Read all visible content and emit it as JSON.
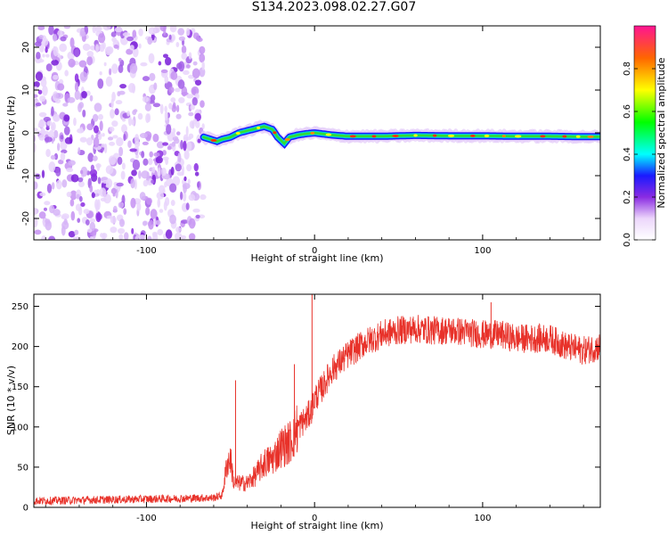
{
  "title": "S134.2023.098.02.27.G07",
  "chart_data": [
    {
      "type": "heatmap",
      "xlabel": "Height of straight line (km)",
      "ylabel": "Frequency (Hz)",
      "xlim": [
        -167,
        170
      ],
      "ylim": [
        -25,
        25
      ],
      "xticks": [
        -100,
        0,
        100
      ],
      "xtick_labels": [
        "-100",
        "0",
        "100"
      ],
      "yticks": [
        -20,
        -10,
        0,
        10,
        20
      ],
      "ytick_labels": [
        "-20",
        "-10",
        "0",
        "10",
        "20"
      ],
      "noise_region_x": [
        -167,
        -66
      ],
      "signal_ridge": {
        "x": [
          -66,
          -62,
          -58,
          -55,
          -50,
          -45,
          -40,
          -35,
          -30,
          -25,
          -22,
          -18,
          -15,
          -10,
          -5,
          0,
          10,
          20,
          40,
          60,
          80,
          100,
          120,
          140,
          160,
          170
        ],
        "frequency": [
          -1.0,
          -1.5,
          -2.0,
          -1.5,
          -1.0,
          0.0,
          0.5,
          1.0,
          1.5,
          0.8,
          -1.0,
          -2.5,
          -1.0,
          -0.5,
          -0.2,
          0.0,
          -0.5,
          -0.8,
          -0.8,
          -0.6,
          -0.7,
          -0.7,
          -0.8,
          -0.8,
          -0.9,
          -0.9
        ]
      },
      "colorbar": {
        "label": "Normalized spectral amplitude",
        "range": [
          0,
          1
        ],
        "ticks": [
          0.0,
          0.2,
          0.4,
          0.6,
          0.8
        ],
        "tick_labels": [
          "0.0",
          "0.2",
          "0.4",
          "0.6",
          "0.8"
        ]
      }
    },
    {
      "type": "line",
      "xlabel": "Height of straight line (km)",
      "ylabel": "SNR (10 * v/v)",
      "xlim": [
        -167,
        170
      ],
      "ylim": [
        0,
        265
      ],
      "xticks": [
        -100,
        0,
        100
      ],
      "xtick_labels": [
        "-100",
        "0",
        "100"
      ],
      "yticks": [
        0,
        50,
        100,
        150,
        200,
        250
      ],
      "ytick_labels": [
        "0",
        "50",
        "100",
        "150",
        "200",
        "250"
      ],
      "series": [
        {
          "color": "#e8322a",
          "x": [
            -167,
            -140,
            -110,
            -80,
            -60,
            -55,
            -52,
            -50,
            -48,
            -45,
            -40,
            -35,
            -30,
            -25,
            -20,
            -15,
            -10,
            -5,
            -2,
            0,
            5,
            10,
            15,
            20,
            30,
            40,
            50,
            60,
            70,
            80,
            90,
            100,
            110,
            120,
            130,
            140,
            150,
            160,
            170
          ],
          "y": [
            8,
            9,
            10,
            11,
            12,
            15,
            55,
            60,
            30,
            30,
            30,
            40,
            55,
            60,
            75,
            80,
            100,
            110,
            120,
            135,
            150,
            170,
            180,
            190,
            205,
            215,
            220,
            222,
            220,
            220,
            218,
            215,
            215,
            210,
            210,
            210,
            200,
            195,
            200
          ]
        }
      ],
      "spikes": [
        {
          "x": -47,
          "y": 158
        },
        {
          "x": -12,
          "y": 178
        },
        {
          "x": -1.5,
          "y": 265
        },
        {
          "x": 105,
          "y": 255
        }
      ]
    }
  ]
}
